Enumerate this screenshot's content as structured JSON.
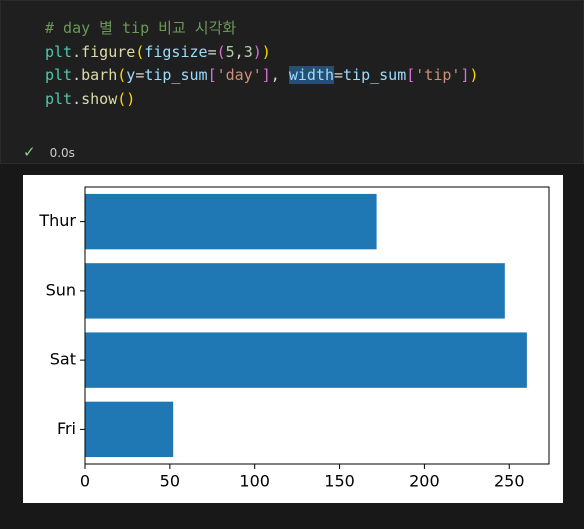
{
  "code": {
    "lines": [
      [
        {
          "text": "# day 별 tip 비교 시각화",
          "color": "#6a9955"
        }
      ],
      [
        {
          "text": "plt",
          "color": "#4ec9b0"
        },
        {
          "text": ".",
          "color": "#d4d4d4"
        },
        {
          "text": "figure",
          "color": "#dcdcaa"
        },
        {
          "text": "(",
          "color": "#ffd700"
        },
        {
          "text": "figsize",
          "color": "#9cdcfe"
        },
        {
          "text": "=",
          "color": "#d4d4d4"
        },
        {
          "text": "(",
          "color": "#da70d6"
        },
        {
          "text": "5",
          "color": "#b5cea8"
        },
        {
          "text": ",",
          "color": "#d4d4d4"
        },
        {
          "text": "3",
          "color": "#b5cea8"
        },
        {
          "text": ")",
          "color": "#da70d6"
        },
        {
          "text": ")",
          "color": "#ffd700"
        }
      ],
      [
        {
          "text": "plt",
          "color": "#4ec9b0"
        },
        {
          "text": ".",
          "color": "#d4d4d4"
        },
        {
          "text": "barh",
          "color": "#dcdcaa"
        },
        {
          "text": "(",
          "color": "#ffd700"
        },
        {
          "text": "y",
          "color": "#9cdcfe"
        },
        {
          "text": "=",
          "color": "#d4d4d4"
        },
        {
          "text": "tip_sum",
          "color": "#9cdcfe"
        },
        {
          "text": "[",
          "color": "#da70d6"
        },
        {
          "text": "'day'",
          "color": "#ce9178"
        },
        {
          "text": "]",
          "color": "#da70d6"
        },
        {
          "text": ", ",
          "color": "#d4d4d4"
        },
        {
          "text": "width",
          "color": "#9cdcfe",
          "highlight": true
        },
        {
          "text": "=",
          "color": "#d4d4d4"
        },
        {
          "text": "tip_sum",
          "color": "#9cdcfe"
        },
        {
          "text": "[",
          "color": "#da70d6"
        },
        {
          "text": "'tip'",
          "color": "#ce9178"
        },
        {
          "text": "]",
          "color": "#da70d6"
        },
        {
          "text": ")",
          "color": "#ffd700"
        }
      ],
      [
        {
          "text": "plt",
          "color": "#4ec9b0"
        },
        {
          "text": ".",
          "color": "#d4d4d4"
        },
        {
          "text": "show",
          "color": "#dcdcaa"
        },
        {
          "text": "()",
          "color": "#ffd700"
        }
      ]
    ]
  },
  "status": {
    "time": "0.0s"
  },
  "chart_data": {
    "type": "barh",
    "categories": [
      "Fri",
      "Sat",
      "Sun",
      "Thur"
    ],
    "values": [
      51.96,
      260.4,
      247.39,
      171.83
    ],
    "color": "#1f77b4",
    "xlim": [
      0,
      273.42
    ],
    "xticks": [
      0,
      50,
      100,
      150,
      200,
      250
    ]
  }
}
